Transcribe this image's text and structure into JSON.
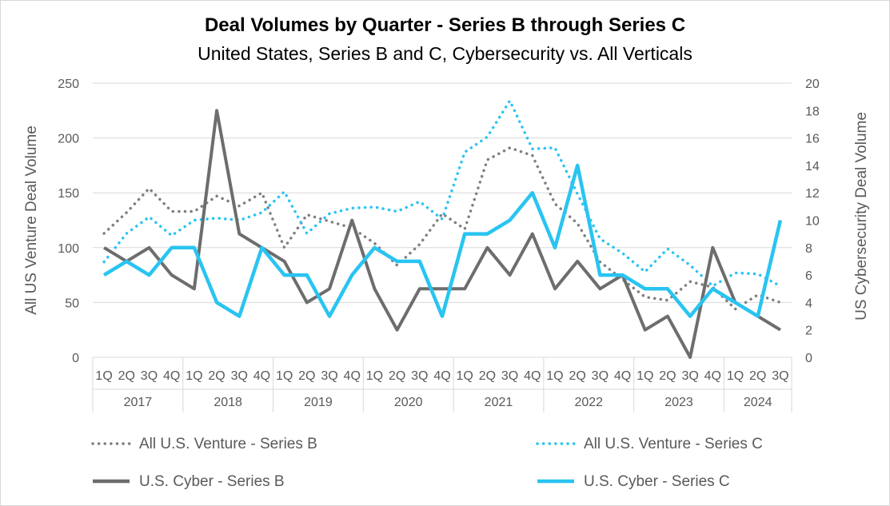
{
  "chart_data": {
    "type": "line",
    "title": "Deal Volumes by Quarter - Series B through Series C",
    "subtitle": "United States, Series B and C, Cybersecurity vs. All Verticals",
    "ylabel_left": "All US Venture Deal Volume",
    "ylabel_right": "US Cybersecurity Deal Volume",
    "ylim_left": [
      0,
      250
    ],
    "ylim_right": [
      0,
      20
    ],
    "yticks_left": [
      "0",
      "50",
      "100",
      "150",
      "200",
      "250"
    ],
    "yticks_right": [
      "0",
      "2",
      "4",
      "6",
      "8",
      "10",
      "12",
      "14",
      "16",
      "18",
      "20"
    ],
    "grid": true,
    "legend_position": "bottom",
    "quarters": [
      "1Q",
      "2Q",
      "3Q",
      "4Q",
      "1Q",
      "2Q",
      "3Q",
      "4Q",
      "1Q",
      "2Q",
      "3Q",
      "4Q",
      "1Q",
      "2Q",
      "3Q",
      "4Q",
      "1Q",
      "2Q",
      "3Q",
      "4Q",
      "1Q",
      "2Q",
      "3Q",
      "4Q",
      "1Q",
      "2Q",
      "3Q",
      "4Q",
      "1Q",
      "2Q",
      "3Q"
    ],
    "years": [
      {
        "label": "2017",
        "count": 4
      },
      {
        "label": "2018",
        "count": 4
      },
      {
        "label": "2019",
        "count": 4
      },
      {
        "label": "2020",
        "count": 4
      },
      {
        "label": "2021",
        "count": 4
      },
      {
        "label": "2022",
        "count": 4
      },
      {
        "label": "2023",
        "count": 4
      },
      {
        "label": "2024",
        "count": 3
      }
    ],
    "series": [
      {
        "name": "All U.S. Venture - Series B",
        "axis": "left",
        "style": "dotted",
        "color": "#7f7f7f",
        "values": [
          113,
          132,
          154,
          133,
          133,
          147,
          138,
          150,
          100,
          130,
          124,
          118,
          104,
          84,
          103,
          131,
          117,
          180,
          191,
          184,
          140,
          122,
          87,
          71,
          55,
          52,
          69,
          64,
          44,
          57,
          50
        ]
      },
      {
        "name": "All U.S. Venture - Series C",
        "axis": "left",
        "style": "dotted",
        "color": "#29c4f1",
        "values": [
          87,
          113,
          128,
          111,
          125,
          127,
          125,
          132,
          151,
          113,
          131,
          136,
          137,
          133,
          142,
          126,
          187,
          201,
          234,
          190,
          191,
          149,
          108,
          95,
          78,
          99,
          84,
          65,
          77,
          76,
          65
        ]
      },
      {
        "name": "U.S. Cyber - Series B",
        "axis": "right",
        "style": "solid",
        "color": "#6d6d6d",
        "values": [
          8,
          7,
          8,
          6,
          5,
          18,
          9,
          8,
          7,
          4,
          5,
          10,
          5,
          2,
          5,
          5,
          5,
          8,
          6,
          9,
          5,
          7,
          5,
          6,
          2,
          3,
          0,
          8,
          4,
          3,
          2
        ]
      },
      {
        "name": "U.S. Cyber - Series C",
        "axis": "right",
        "style": "solid",
        "color": "#29c4f1",
        "values": [
          6,
          7,
          6,
          8,
          8,
          4,
          3,
          8,
          6,
          6,
          3,
          6,
          8,
          7,
          7,
          3,
          9,
          9,
          10,
          12,
          8,
          14,
          6,
          6,
          5,
          5,
          3,
          5,
          4,
          3,
          10
        ]
      }
    ]
  }
}
